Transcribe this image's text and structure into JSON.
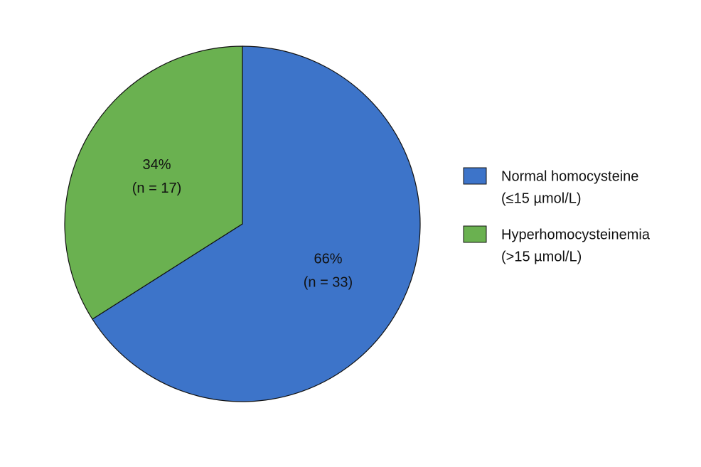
{
  "chart_data": {
    "type": "pie",
    "categories": [
      "Normal homocysteine",
      "Hyperhomocysteinemia"
    ],
    "category_sublabels": [
      "(≤15 µmol/L)",
      "(>15 µmol/L)"
    ],
    "values": [
      66,
      34
    ],
    "value_labels": [
      "66%",
      "34%"
    ],
    "counts": [
      33,
      17
    ],
    "count_labels": [
      "(n = 33)",
      "(n = 17)"
    ],
    "colors": [
      "#3d74c9",
      "#6ab150"
    ],
    "legend": "right"
  }
}
